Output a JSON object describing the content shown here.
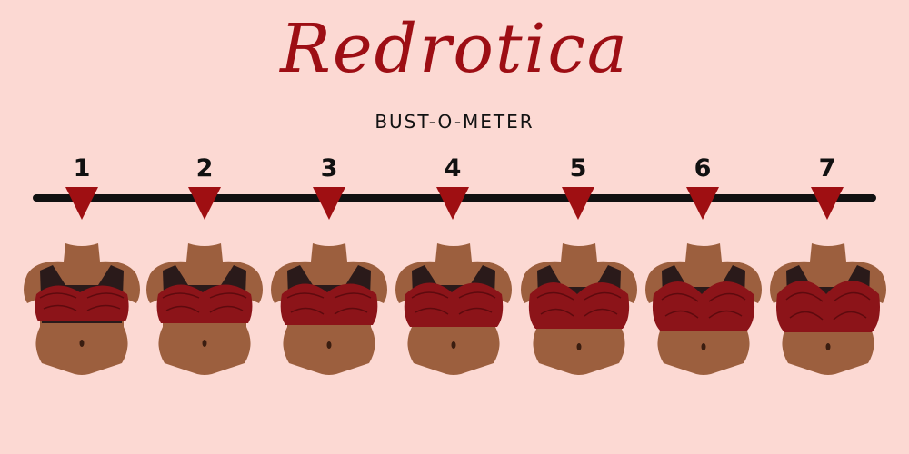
{
  "brand": "Redrotica",
  "subtitle": "BUST-O-METER",
  "scale": {
    "levels": [
      "1",
      "2",
      "3",
      "4",
      "5",
      "6",
      "7"
    ]
  },
  "colors": {
    "background": "#fcd9d3",
    "brand": "#9d0e14",
    "marker": "#9f0f12",
    "line": "#111111",
    "skin": "#9c5f3e",
    "bra": "#8c1419",
    "lace": "#2a1a1a"
  },
  "illustrations": [
    {
      "label": "torso-1"
    },
    {
      "label": "torso-2"
    },
    {
      "label": "torso-3"
    },
    {
      "label": "torso-4"
    },
    {
      "label": "torso-5"
    },
    {
      "label": "torso-6"
    },
    {
      "label": "torso-7"
    }
  ]
}
